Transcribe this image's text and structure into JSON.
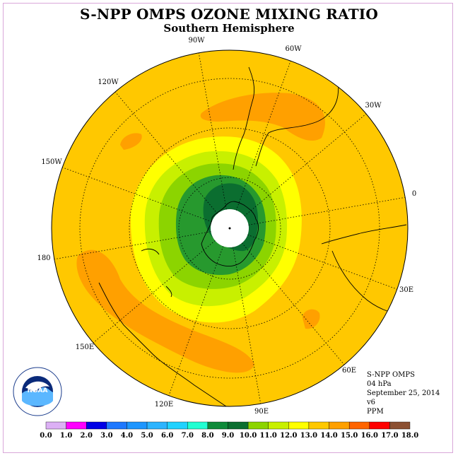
{
  "title": "S-NPP OMPS OZONE MIXING RATIO",
  "subtitle": "Southern Hemisphere",
  "longitude_labels": [
    {
      "text": "0",
      "key": "lon0"
    },
    {
      "text": "30E",
      "key": "lon30e"
    },
    {
      "text": "60E",
      "key": "lon60e"
    },
    {
      "text": "90E",
      "key": "lon90e"
    },
    {
      "text": "120E",
      "key": "lon120e"
    },
    {
      "text": "150E",
      "key": "lon150e"
    },
    {
      "text": "180",
      "key": "lon180"
    },
    {
      "text": "150W",
      "key": "lon150w"
    },
    {
      "text": "120W",
      "key": "lon120w"
    },
    {
      "text": "90W",
      "key": "lon90w"
    },
    {
      "text": "60W",
      "key": "lon60w"
    },
    {
      "text": "30W",
      "key": "lon30w"
    }
  ],
  "info": {
    "instrument": "S-NPP OMPS",
    "level": "04 hPa",
    "date": "September 25, 2014",
    "version": "v6",
    "units": "PPM"
  },
  "logo_text": "NOAA",
  "colorbar": {
    "ticks": [
      "0.0",
      "1.0",
      "2.0",
      "3.0",
      "4.0",
      "5.0",
      "6.0",
      "7.0",
      "8.0",
      "9.0",
      "10.0",
      "11.0",
      "12.0",
      "13.0",
      "14.0",
      "15.0",
      "16.0",
      "17.0",
      "18.0"
    ],
    "colors": [
      "#b47cf0",
      "#dcb0f5",
      "#ff00ff",
      "#0000e6",
      "#1e78ff",
      "#1e96ff",
      "#2cb4ff",
      "#20d2ff",
      "#20ffd2",
      "#0e8a3a",
      "#0b6e30",
      "#8cd400",
      "#c8f000",
      "#ffff00",
      "#ffc800",
      "#ffa000",
      "#ff6400",
      "#ff0000",
      "#8c5032"
    ]
  },
  "colors": {
    "background_field": "#ffc800",
    "orange_band": "#ffa000",
    "yellow": "#ffff00",
    "yellow_green": "#c8f000",
    "light_green": "#8cd400",
    "green": "#0e8a3a",
    "dark_green": "#0b6e30"
  }
}
